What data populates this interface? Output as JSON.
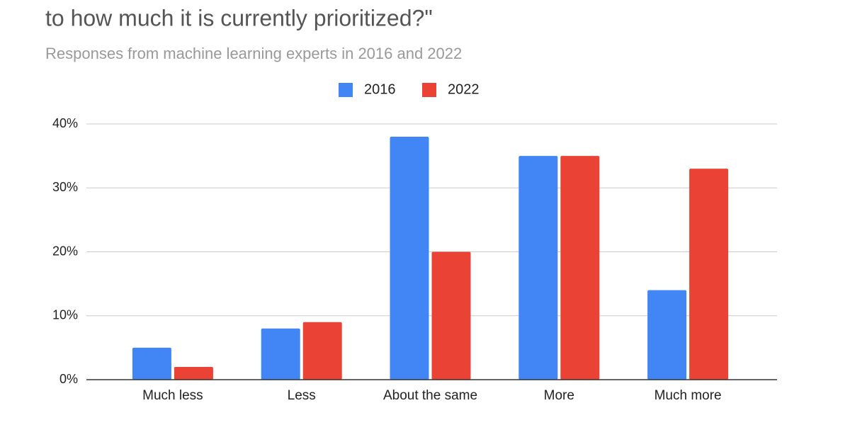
{
  "chart_data": {
    "type": "bar",
    "title": "to how much it is currently prioritized?\"",
    "subtitle": "Responses from machine learning experts in 2016 and 2022",
    "categories": [
      "Much less",
      "Less",
      "About the same",
      "More",
      "Much more"
    ],
    "series": [
      {
        "name": "2016",
        "color": "#4285f4",
        "values": [
          5,
          8,
          38,
          35,
          14
        ]
      },
      {
        "name": "2022",
        "color": "#ea4335",
        "values": [
          2,
          9,
          20,
          35,
          33
        ]
      }
    ],
    "ylim": [
      0,
      40
    ],
    "yticks": [
      {
        "value": 0,
        "label": "0%"
      },
      {
        "value": 10,
        "label": "10%"
      },
      {
        "value": 20,
        "label": "20%"
      },
      {
        "value": 30,
        "label": "30%"
      },
      {
        "value": 40,
        "label": "40%"
      }
    ],
    "grid": true,
    "legend": "top"
  }
}
